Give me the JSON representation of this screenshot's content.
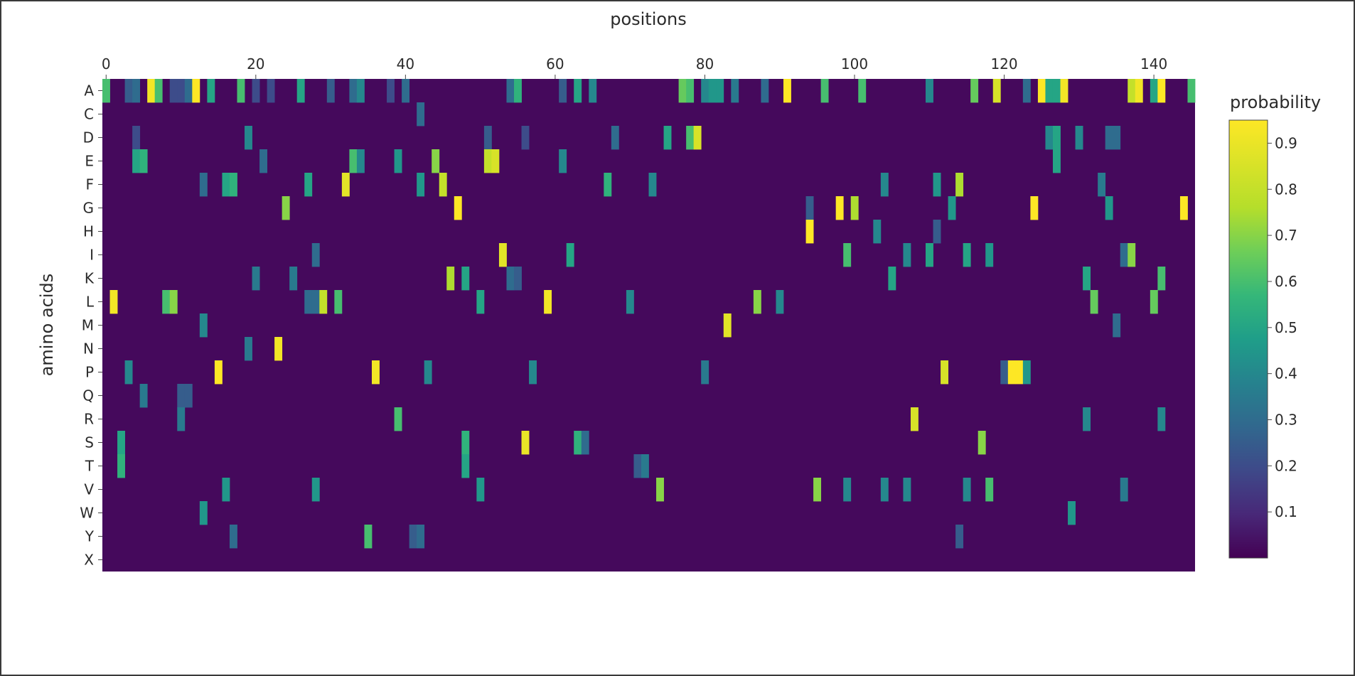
{
  "chart_data": {
    "type": "heatmap",
    "title": "",
    "xlabel": "positions",
    "ylabel": "amino acids",
    "x_axis_position": "top",
    "x_range": [
      0,
      145
    ],
    "x_ticks": [
      0,
      20,
      40,
      60,
      80,
      100,
      120,
      140
    ],
    "y_categories": [
      "A",
      "C",
      "D",
      "E",
      "F",
      "G",
      "H",
      "I",
      "K",
      "L",
      "M",
      "N",
      "P",
      "Q",
      "R",
      "S",
      "T",
      "V",
      "W",
      "Y",
      "X"
    ],
    "colorscale": "viridis",
    "colorbar": {
      "title": "probability",
      "range": [
        0.0,
        0.95
      ],
      "ticks": [
        "0.9",
        "0.8",
        "0.7",
        "0.6",
        "0.5",
        "0.4",
        "0.3",
        "0.2",
        "0.1"
      ],
      "tick_values": [
        0.9,
        0.8,
        0.7,
        0.6,
        0.5,
        0.4,
        0.3,
        0.2,
        0.1
      ]
    },
    "background_value": 0.02,
    "cells": [
      {
        "row": "A",
        "x": 0,
        "v": 0.6
      },
      {
        "row": "A",
        "x": 3,
        "v": 0.25
      },
      {
        "row": "A",
        "x": 4,
        "v": 0.3
      },
      {
        "row": "A",
        "x": 6,
        "v": 0.92
      },
      {
        "row": "A",
        "x": 7,
        "v": 0.6
      },
      {
        "row": "A",
        "x": 9,
        "v": 0.2
      },
      {
        "row": "A",
        "x": 10,
        "v": 0.2
      },
      {
        "row": "A",
        "x": 11,
        "v": 0.3
      },
      {
        "row": "A",
        "x": 12,
        "v": 0.95
      },
      {
        "row": "A",
        "x": 14,
        "v": 0.5
      },
      {
        "row": "A",
        "x": 18,
        "v": 0.6
      },
      {
        "row": "A",
        "x": 20,
        "v": 0.2
      },
      {
        "row": "A",
        "x": 22,
        "v": 0.2
      },
      {
        "row": "A",
        "x": 26,
        "v": 0.5
      },
      {
        "row": "A",
        "x": 30,
        "v": 0.25
      },
      {
        "row": "A",
        "x": 33,
        "v": 0.3
      },
      {
        "row": "A",
        "x": 34,
        "v": 0.4
      },
      {
        "row": "A",
        "x": 38,
        "v": 0.2
      },
      {
        "row": "A",
        "x": 40,
        "v": 0.3
      },
      {
        "row": "A",
        "x": 54,
        "v": 0.3
      },
      {
        "row": "A",
        "x": 55,
        "v": 0.55
      },
      {
        "row": "A",
        "x": 61,
        "v": 0.25
      },
      {
        "row": "A",
        "x": 63,
        "v": 0.5
      },
      {
        "row": "A",
        "x": 65,
        "v": 0.4
      },
      {
        "row": "A",
        "x": 77,
        "v": 0.65
      },
      {
        "row": "A",
        "x": 78,
        "v": 0.6
      },
      {
        "row": "A",
        "x": 80,
        "v": 0.4
      },
      {
        "row": "A",
        "x": 81,
        "v": 0.45
      },
      {
        "row": "A",
        "x": 82,
        "v": 0.45
      },
      {
        "row": "A",
        "x": 84,
        "v": 0.35
      },
      {
        "row": "A",
        "x": 88,
        "v": 0.3
      },
      {
        "row": "A",
        "x": 91,
        "v": 0.95
      },
      {
        "row": "A",
        "x": 96,
        "v": 0.6
      },
      {
        "row": "A",
        "x": 101,
        "v": 0.6
      },
      {
        "row": "A",
        "x": 110,
        "v": 0.4
      },
      {
        "row": "A",
        "x": 116,
        "v": 0.65
      },
      {
        "row": "A",
        "x": 119,
        "v": 0.85
      },
      {
        "row": "A",
        "x": 123,
        "v": 0.3
      },
      {
        "row": "A",
        "x": 125,
        "v": 0.95
      },
      {
        "row": "A",
        "x": 126,
        "v": 0.5
      },
      {
        "row": "A",
        "x": 127,
        "v": 0.5
      },
      {
        "row": "A",
        "x": 128,
        "v": 0.92
      },
      {
        "row": "A",
        "x": 137,
        "v": 0.8
      },
      {
        "row": "A",
        "x": 138,
        "v": 0.92
      },
      {
        "row": "A",
        "x": 140,
        "v": 0.5
      },
      {
        "row": "A",
        "x": 141,
        "v": 0.95
      },
      {
        "row": "A",
        "x": 145,
        "v": 0.6
      },
      {
        "row": "C",
        "x": 42,
        "v": 0.3
      },
      {
        "row": "D",
        "x": 4,
        "v": 0.2
      },
      {
        "row": "D",
        "x": 19,
        "v": 0.4
      },
      {
        "row": "D",
        "x": 51,
        "v": 0.25
      },
      {
        "row": "D",
        "x": 56,
        "v": 0.2
      },
      {
        "row": "D",
        "x": 68,
        "v": 0.3
      },
      {
        "row": "D",
        "x": 75,
        "v": 0.5
      },
      {
        "row": "D",
        "x": 78,
        "v": 0.6
      },
      {
        "row": "D",
        "x": 79,
        "v": 0.85
      },
      {
        "row": "D",
        "x": 126,
        "v": 0.4
      },
      {
        "row": "D",
        "x": 127,
        "v": 0.5
      },
      {
        "row": "D",
        "x": 130,
        "v": 0.4
      },
      {
        "row": "D",
        "x": 134,
        "v": 0.3
      },
      {
        "row": "D",
        "x": 135,
        "v": 0.3
      },
      {
        "row": "E",
        "x": 4,
        "v": 0.5
      },
      {
        "row": "E",
        "x": 5,
        "v": 0.55
      },
      {
        "row": "E",
        "x": 21,
        "v": 0.3
      },
      {
        "row": "E",
        "x": 33,
        "v": 0.6
      },
      {
        "row": "E",
        "x": 34,
        "v": 0.4
      },
      {
        "row": "E",
        "x": 39,
        "v": 0.45
      },
      {
        "row": "E",
        "x": 44,
        "v": 0.7
      },
      {
        "row": "E",
        "x": 51,
        "v": 0.8
      },
      {
        "row": "E",
        "x": 52,
        "v": 0.85
      },
      {
        "row": "E",
        "x": 61,
        "v": 0.4
      },
      {
        "row": "E",
        "x": 127,
        "v": 0.5
      },
      {
        "row": "F",
        "x": 13,
        "v": 0.3
      },
      {
        "row": "F",
        "x": 16,
        "v": 0.5
      },
      {
        "row": "F",
        "x": 17,
        "v": 0.55
      },
      {
        "row": "F",
        "x": 27,
        "v": 0.5
      },
      {
        "row": "F",
        "x": 32,
        "v": 0.88
      },
      {
        "row": "F",
        "x": 42,
        "v": 0.45
      },
      {
        "row": "F",
        "x": 45,
        "v": 0.8
      },
      {
        "row": "F",
        "x": 67,
        "v": 0.55
      },
      {
        "row": "F",
        "x": 73,
        "v": 0.4
      },
      {
        "row": "F",
        "x": 104,
        "v": 0.4
      },
      {
        "row": "F",
        "x": 111,
        "v": 0.45
      },
      {
        "row": "F",
        "x": 114,
        "v": 0.75
      },
      {
        "row": "F",
        "x": 133,
        "v": 0.35
      },
      {
        "row": "G",
        "x": 24,
        "v": 0.7
      },
      {
        "row": "G",
        "x": 47,
        "v": 0.95
      },
      {
        "row": "G",
        "x": 94,
        "v": 0.25
      },
      {
        "row": "G",
        "x": 98,
        "v": 0.95
      },
      {
        "row": "G",
        "x": 100,
        "v": 0.75
      },
      {
        "row": "G",
        "x": 113,
        "v": 0.45
      },
      {
        "row": "G",
        "x": 124,
        "v": 0.95
      },
      {
        "row": "G",
        "x": 134,
        "v": 0.45
      },
      {
        "row": "G",
        "x": 144,
        "v": 0.95
      },
      {
        "row": "H",
        "x": 94,
        "v": 0.95
      },
      {
        "row": "H",
        "x": 103,
        "v": 0.4
      },
      {
        "row": "H",
        "x": 111,
        "v": 0.25
      },
      {
        "row": "I",
        "x": 28,
        "v": 0.3
      },
      {
        "row": "I",
        "x": 53,
        "v": 0.88
      },
      {
        "row": "I",
        "x": 62,
        "v": 0.5
      },
      {
        "row": "I",
        "x": 99,
        "v": 0.6
      },
      {
        "row": "I",
        "x": 107,
        "v": 0.4
      },
      {
        "row": "I",
        "x": 110,
        "v": 0.5
      },
      {
        "row": "I",
        "x": 115,
        "v": 0.5
      },
      {
        "row": "I",
        "x": 118,
        "v": 0.45
      },
      {
        "row": "I",
        "x": 136,
        "v": 0.3
      },
      {
        "row": "I",
        "x": 137,
        "v": 0.7
      },
      {
        "row": "K",
        "x": 20,
        "v": 0.35
      },
      {
        "row": "K",
        "x": 25,
        "v": 0.35
      },
      {
        "row": "K",
        "x": 46,
        "v": 0.75
      },
      {
        "row": "K",
        "x": 48,
        "v": 0.5
      },
      {
        "row": "K",
        "x": 54,
        "v": 0.3
      },
      {
        "row": "K",
        "x": 55,
        "v": 0.25
      },
      {
        "row": "K",
        "x": 105,
        "v": 0.5
      },
      {
        "row": "K",
        "x": 131,
        "v": 0.5
      },
      {
        "row": "K",
        "x": 141,
        "v": 0.6
      },
      {
        "row": "L",
        "x": 1,
        "v": 0.92
      },
      {
        "row": "L",
        "x": 8,
        "v": 0.6
      },
      {
        "row": "L",
        "x": 9,
        "v": 0.7
      },
      {
        "row": "L",
        "x": 27,
        "v": 0.3
      },
      {
        "row": "L",
        "x": 28,
        "v": 0.3
      },
      {
        "row": "L",
        "x": 29,
        "v": 0.8
      },
      {
        "row": "L",
        "x": 31,
        "v": 0.6
      },
      {
        "row": "L",
        "x": 50,
        "v": 0.5
      },
      {
        "row": "L",
        "x": 59,
        "v": 0.92
      },
      {
        "row": "L",
        "x": 70,
        "v": 0.4
      },
      {
        "row": "L",
        "x": 87,
        "v": 0.7
      },
      {
        "row": "L",
        "x": 90,
        "v": 0.4
      },
      {
        "row": "L",
        "x": 132,
        "v": 0.65
      },
      {
        "row": "L",
        "x": 140,
        "v": 0.65
      },
      {
        "row": "M",
        "x": 13,
        "v": 0.4
      },
      {
        "row": "M",
        "x": 83,
        "v": 0.88
      },
      {
        "row": "M",
        "x": 135,
        "v": 0.3
      },
      {
        "row": "N",
        "x": 19,
        "v": 0.35
      },
      {
        "row": "N",
        "x": 23,
        "v": 0.92
      },
      {
        "row": "P",
        "x": 3,
        "v": 0.4
      },
      {
        "row": "P",
        "x": 15,
        "v": 0.95
      },
      {
        "row": "P",
        "x": 36,
        "v": 0.92
      },
      {
        "row": "P",
        "x": 43,
        "v": 0.4
      },
      {
        "row": "P",
        "x": 57,
        "v": 0.4
      },
      {
        "row": "P",
        "x": 80,
        "v": 0.35
      },
      {
        "row": "P",
        "x": 112,
        "v": 0.85
      },
      {
        "row": "P",
        "x": 120,
        "v": 0.25
      },
      {
        "row": "P",
        "x": 121,
        "v": 0.95
      },
      {
        "row": "P",
        "x": 122,
        "v": 0.95
      },
      {
        "row": "P",
        "x": 123,
        "v": 0.45
      },
      {
        "row": "Q",
        "x": 5,
        "v": 0.35
      },
      {
        "row": "Q",
        "x": 10,
        "v": 0.25
      },
      {
        "row": "Q",
        "x": 11,
        "v": 0.25
      },
      {
        "row": "R",
        "x": 10,
        "v": 0.35
      },
      {
        "row": "R",
        "x": 39,
        "v": 0.6
      },
      {
        "row": "R",
        "x": 108,
        "v": 0.85
      },
      {
        "row": "R",
        "x": 131,
        "v": 0.4
      },
      {
        "row": "R",
        "x": 141,
        "v": 0.4
      },
      {
        "row": "S",
        "x": 2,
        "v": 0.5
      },
      {
        "row": "S",
        "x": 48,
        "v": 0.55
      },
      {
        "row": "S",
        "x": 56,
        "v": 0.9
      },
      {
        "row": "S",
        "x": 63,
        "v": 0.55
      },
      {
        "row": "S",
        "x": 64,
        "v": 0.3
      },
      {
        "row": "S",
        "x": 117,
        "v": 0.7
      },
      {
        "row": "T",
        "x": 2,
        "v": 0.55
      },
      {
        "row": "T",
        "x": 48,
        "v": 0.5
      },
      {
        "row": "T",
        "x": 71,
        "v": 0.25
      },
      {
        "row": "T",
        "x": 72,
        "v": 0.35
      },
      {
        "row": "V",
        "x": 16,
        "v": 0.45
      },
      {
        "row": "V",
        "x": 28,
        "v": 0.45
      },
      {
        "row": "V",
        "x": 50,
        "v": 0.45
      },
      {
        "row": "V",
        "x": 74,
        "v": 0.7
      },
      {
        "row": "V",
        "x": 95,
        "v": 0.7
      },
      {
        "row": "V",
        "x": 99,
        "v": 0.4
      },
      {
        "row": "V",
        "x": 104,
        "v": 0.4
      },
      {
        "row": "V",
        "x": 107,
        "v": 0.4
      },
      {
        "row": "V",
        "x": 115,
        "v": 0.4
      },
      {
        "row": "V",
        "x": 118,
        "v": 0.6
      },
      {
        "row": "V",
        "x": 136,
        "v": 0.35
      },
      {
        "row": "W",
        "x": 13,
        "v": 0.45
      },
      {
        "row": "W",
        "x": 129,
        "v": 0.45
      },
      {
        "row": "Y",
        "x": 17,
        "v": 0.3
      },
      {
        "row": "Y",
        "x": 35,
        "v": 0.6
      },
      {
        "row": "Y",
        "x": 41,
        "v": 0.25
      },
      {
        "row": "Y",
        "x": 42,
        "v": 0.3
      },
      {
        "row": "Y",
        "x": 114,
        "v": 0.25
      }
    ]
  }
}
